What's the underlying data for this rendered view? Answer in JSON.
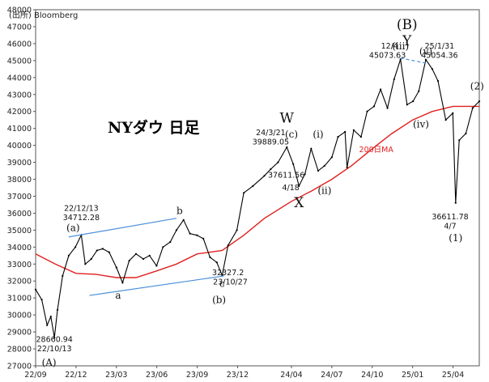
{
  "chart_data": {
    "type": "line",
    "title": "NYダウ 日足",
    "source": "(出所) Bloomberg",
    "ylim": [
      27000,
      48000
    ],
    "y_ticks": [
      27000,
      28000,
      29000,
      30000,
      31000,
      32000,
      33000,
      34000,
      35000,
      36000,
      37000,
      38000,
      39000,
      40000,
      41000,
      42000,
      43000,
      44000,
      45000,
      46000,
      47000,
      48000
    ],
    "x_ticks": [
      "22/09",
      "22/12",
      "23/03",
      "23/06",
      "23/09",
      "23/12",
      "24/04",
      "24/07",
      "24/10",
      "25/01",
      "25/04"
    ],
    "series": [
      {
        "name": "",
        "color": "#000000",
        "x": [
          "22/09/01",
          "22/09/15",
          "22/09/27",
          "22/10/05",
          "22/10/13",
          "22/10/20",
          "22/11/01",
          "22/11/15",
          "22/11/30",
          "22/12/13",
          "22/12/22",
          "23/01/05",
          "23/01/18",
          "23/01/31",
          "23/02/15",
          "23/03/01",
          "23/03/15",
          "23/03/30",
          "23/04/15",
          "23/05/01",
          "23/05/15",
          "23/05/31",
          "23/06/15",
          "23/07/01",
          "23/07/15",
          "23/07/31",
          "23/08/15",
          "23/08/31",
          "23/09/15",
          "23/09/30",
          "23/10/15",
          "23/10/27",
          "23/11/10",
          "23/11/30",
          "23/12/15",
          "24/01/05",
          "24/01/31",
          "24/02/15",
          "24/03/01",
          "24/03/21",
          "24/04/05",
          "24/04/18",
          "24/05/01",
          "24/05/15",
          "24/05/31",
          "24/06/15",
          "24/07/01",
          "24/07/15",
          "24/07/31",
          "24/08/05",
          "24/08/20",
          "24/09/06",
          "24/09/20",
          "24/10/05",
          "24/10/20",
          "24/11/05",
          "24/11/20",
          "24/12/04",
          "24/12/19",
          "25/01/02",
          "25/01/15",
          "25/01/31",
          "25/02/15",
          "25/02/28",
          "25/03/15",
          "25/03/31",
          "25/04/07",
          "25/04/15",
          "25/04/30",
          "25/05/15",
          "25/05/30"
        ],
        "values": [
          31500,
          30900,
          29400,
          29900,
          28661,
          30300,
          32300,
          33500,
          34000,
          34712,
          33000,
          33300,
          33800,
          33900,
          33700,
          32800,
          31900,
          33200,
          33600,
          33300,
          33500,
          32900,
          34000,
          34300,
          35000,
          35600,
          34800,
          34700,
          34500,
          33400,
          33100,
          32327,
          34100,
          35000,
          37200,
          37600,
          38200,
          38600,
          39000,
          39889,
          38900,
          37611,
          38300,
          39800,
          38500,
          38800,
          39300,
          40500,
          40800,
          38700,
          40900,
          40500,
          42000,
          42300,
          43300,
          42200,
          43900,
          45074,
          42400,
          42600,
          43200,
          45054,
          44500,
          43800,
          41500,
          41900,
          36612,
          40300,
          40700,
          42200,
          42600
        ]
      },
      {
        "name": "200日MA",
        "color": "#e02020",
        "x": [
          "22/09/01",
          "22/10/15",
          "22/12/01",
          "23/01/15",
          "23/03/01",
          "23/04/15",
          "23/06/01",
          "23/07/15",
          "23/09/01",
          "23/10/27",
          "23/12/15",
          "24/02/01",
          "24/04/01",
          "24/05/15",
          "24/07/01",
          "24/08/15",
          "24/10/01",
          "24/11/15",
          "25/01/01",
          "25/02/15",
          "25/04/01",
          "25/04/30",
          "25/05/30"
        ],
        "values": [
          33600,
          33000,
          32450,
          32400,
          32200,
          32200,
          32600,
          33000,
          33600,
          33800,
          34700,
          35700,
          36700,
          37300,
          38000,
          38800,
          39800,
          40700,
          41500,
          42000,
          42300,
          42300,
          42300
        ]
      }
    ],
    "reference_lines": [
      {
        "from": {
          "x": "22/11/15",
          "y": 34600
        },
        "to": {
          "x": "23/07/15",
          "y": 35700
        },
        "color": "#4a90d9"
      },
      {
        "from": {
          "x": "23/01/01",
          "y": 31150
        },
        "to": {
          "x": "23/10/31",
          "y": 32300
        },
        "color": "#4a90d9"
      },
      {
        "from": {
          "x": "24/12/04",
          "y": 45150
        },
        "to": {
          "x": "25/01/31",
          "y": 44850
        },
        "color": "#4a90d9",
        "dashed": true
      }
    ],
    "annotations": [
      {
        "text": "28660.94",
        "x": "22/10/13",
        "y": 28400,
        "cls": "ann"
      },
      {
        "text": "22/10/13",
        "x": "22/10/13",
        "y": 27850,
        "cls": "ann"
      },
      {
        "text": "(A)",
        "x": "22/10/01",
        "y": 27000,
        "cls": "wave"
      },
      {
        "text": "22/12/13",
        "x": "22/12/13",
        "y": 36150,
        "cls": "ann"
      },
      {
        "text": "34712.28",
        "x": "22/12/13",
        "y": 35600,
        "cls": "ann"
      },
      {
        "text": "(a)",
        "x": "22/11/25",
        "y": 34950,
        "cls": "wave"
      },
      {
        "text": "a",
        "x": "23/03/05",
        "y": 30950,
        "cls": "wave"
      },
      {
        "text": "b",
        "x": "23/07/22",
        "y": 35950,
        "cls": "wave"
      },
      {
        "text": "32327.2",
        "x": "23/11/10",
        "y": 32350,
        "cls": "ann"
      },
      {
        "text": "23/10/27",
        "x": "23/11/15",
        "y": 31800,
        "cls": "ann"
      },
      {
        "text": "c",
        "x": "23/10/27",
        "y": 31650,
        "cls": "wave"
      },
      {
        "text": "(b)",
        "x": "23/10/20",
        "y": 30700,
        "cls": "wave"
      },
      {
        "text": "W",
        "x": "24/03/21",
        "y": 41350,
        "cls": "wave-big"
      },
      {
        "text": "24/3/21",
        "x": "24/02/15",
        "y": 40600,
        "cls": "ann"
      },
      {
        "text": "39889.05",
        "x": "24/02/15",
        "y": 40050,
        "cls": "ann"
      },
      {
        "text": "(c)",
        "x": "24/04/01",
        "y": 40450,
        "cls": "wave"
      },
      {
        "text": "37611.56",
        "x": "24/03/20",
        "y": 38100,
        "cls": "ann"
      },
      {
        "text": "4/18",
        "x": "24/03/30",
        "y": 37350,
        "cls": "ann"
      },
      {
        "text": "X",
        "x": "24/04/18",
        "y": 36350,
        "cls": "wave-big"
      },
      {
        "text": "(i)",
        "x": "24/05/31",
        "y": 40450,
        "cls": "wave"
      },
      {
        "text": "(ii)",
        "x": "24/06/15",
        "y": 37150,
        "cls": "wave"
      },
      {
        "text": "(B)",
        "x": "24/12/19",
        "y": 46850,
        "cls": "wave-big"
      },
      {
        "text": "Y",
        "x": "24/12/19",
        "y": 45900,
        "cls": "wave-big"
      },
      {
        "text": "(iii)",
        "x": "24/12/04",
        "y": 45650,
        "cls": "wave"
      },
      {
        "text": "12/4",
        "x": "24/11/10",
        "y": 45700,
        "cls": "ann"
      },
      {
        "text": "45073.63",
        "x": "24/11/05",
        "y": 45150,
        "cls": "ann"
      },
      {
        "text": "(v)",
        "x": "25/01/31",
        "y": 45350,
        "cls": "wave"
      },
      {
        "text": "25/1/31",
        "x": "25/03/01",
        "y": 45700,
        "cls": "ann"
      },
      {
        "text": "45054.36",
        "x": "25/03/01",
        "y": 45150,
        "cls": "ann"
      },
      {
        "text": "(iv)",
        "x": "25/01/20",
        "y": 41050,
        "cls": "wave"
      },
      {
        "text": "200日MA",
        "x": "24/10/10",
        "y": 39600,
        "cls": "ma-label"
      },
      {
        "text": "36611.78",
        "x": "25/03/25",
        "y": 35650,
        "cls": "ann"
      },
      {
        "text": "4/7",
        "x": "25/03/25",
        "y": 35100,
        "cls": "ann"
      },
      {
        "text": "(1)",
        "x": "25/04/07",
        "y": 34350,
        "cls": "wave"
      },
      {
        "text": "(2)",
        "x": "25/05/25",
        "y": 43300,
        "cls": "wave"
      }
    ],
    "grid": false,
    "legend": "none"
  }
}
